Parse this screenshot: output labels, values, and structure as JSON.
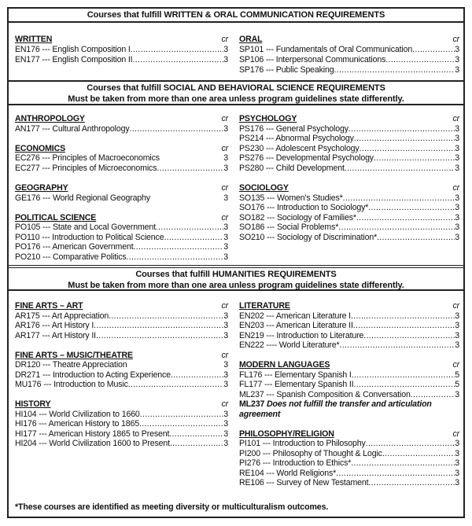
{
  "sections": [
    {
      "header": [
        "Courses that fulfill WRITTEN & ORAL COMMUNICATION REQUIREMENTS"
      ],
      "left": [
        {
          "title": "WRITTEN",
          "cr": "cr",
          "items": [
            {
              "text": "EN176 --- English Composition I",
              "credit": "3"
            },
            {
              "text": "EN177 --- English Composition II",
              "credit": "3"
            }
          ]
        }
      ],
      "right": [
        {
          "title": "ORAL",
          "cr": "cr",
          "items": [
            {
              "text": "SP101 --- Fundamentals of Oral Communication",
              "credit": "3"
            },
            {
              "text": "SP106 --- Interpersonal Communications",
              "credit": "3"
            },
            {
              "text": "SP176 --- Public Speaking",
              "credit": "3"
            }
          ]
        }
      ]
    },
    {
      "header": [
        "Courses that fulfill SOCIAL AND BEHAVIORAL SCIENCE REQUIREMENTS",
        "Must be taken from more than one area unless program guidelines state differently."
      ],
      "left": [
        {
          "title": "ANTHROPOLOGY",
          "cr": "cr",
          "items": [
            {
              "text": "AN177 --- Cultural Anthropology",
              "credit": "3"
            }
          ]
        },
        {
          "title": "ECONOMICS",
          "cr": "cr",
          "items": [
            {
              "text": "EC276 --- Principles of Macroeconomics",
              "credit": "3",
              "leader": false
            },
            {
              "text": "EC277 --- Principles of Microeconomics",
              "credit": "3"
            }
          ]
        },
        {
          "title": "GEOGRAPHY",
          "cr": "cr",
          "items": [
            {
              "text": "GE176 --- World Regional Geography",
              "credit": "3",
              "leader": false
            }
          ]
        },
        {
          "title": "POLITICAL SCIENCE",
          "cr": "cr",
          "items": [
            {
              "text": "PO105 --- State and Local Government",
              "credit": "3"
            },
            {
              "text": "PO110 --- Introduction to Political Science",
              "credit": "3"
            },
            {
              "text": "PO176 --- American Government",
              "credit": "3"
            },
            {
              "text": "PO210 --- Comparative Politics",
              "credit": "3"
            }
          ]
        }
      ],
      "right": [
        {
          "title": "PSYCHOLOGY",
          "cr": "cr",
          "items": [
            {
              "text": "PS176 --- General Psychology",
              "credit": "3"
            },
            {
              "text": "PS214 --- Abnormal Psychology",
              "credit": "3"
            },
            {
              "text": "PS230 --- Adolescent Psychology",
              "credit": "3"
            },
            {
              "text": "PS276 --- Developmental Psychology",
              "credit": "3"
            },
            {
              "text": "PS280 --- Child Development",
              "credit": "3"
            }
          ]
        },
        {
          "title": "SOCIOLOGY",
          "cr": "cr",
          "items": [
            {
              "text": "SO135 --- Women's Studies*",
              "credit": "3"
            },
            {
              "text": "SO176 --- Introduction to Sociology*",
              "credit": "3"
            },
            {
              "text": "SO182 --- Sociology of Families*",
              "credit": "3"
            },
            {
              "text": "SO186 --- Social Problems*",
              "credit": "3"
            },
            {
              "text": "SO210 --- Sociology of Discrimination*",
              "credit": "3"
            }
          ]
        }
      ]
    },
    {
      "header": [
        "Courses that fulfill HUMANITIES REQUIREMENTS",
        "Must be taken from more than one area unless program guidelines state differently."
      ],
      "left": [
        {
          "title": "FINE ARTS – ART",
          "cr": "cr",
          "items": [
            {
              "text": "AR175 --- Art Appreciation",
              "credit": "3"
            },
            {
              "text": "AR176 --- Art History I",
              "credit": "3"
            },
            {
              "text": "AR177 --- Art History II",
              "credit": "3"
            }
          ]
        },
        {
          "title": "FINE ARTS – MUSIC/THEATRE",
          "cr": "cr",
          "items": [
            {
              "text": "DR120 --- Theatre Appreciation",
              "credit": "3",
              "leader": false
            },
            {
              "text": "DR271 --- Introduction to Acting Experience",
              "credit": "3"
            },
            {
              "text": "MU176 --- Introduction to Music",
              "credit": "3"
            }
          ]
        },
        {
          "title": "HISTORY",
          "cr": "cr",
          "items": [
            {
              "text": "HI104 --- World Civilization to 1660",
              "credit": "3"
            },
            {
              "text": "HI176 --- American History to 1865",
              "credit": "3"
            },
            {
              "text": "HI177 --- American History 1865 to Present",
              "credit": "3"
            },
            {
              "text": "HI204 --- World Civilization 1600 to Present",
              "credit": "3"
            }
          ]
        }
      ],
      "right": [
        {
          "title": "LITERATURE",
          "cr": "cr",
          "items": [
            {
              "text": "EN202 --- American Literature I",
              "credit": "3"
            },
            {
              "text": "EN203 --- American Literature II",
              "credit": "3"
            },
            {
              "text": "EN219 --- Introduction to Literature",
              "credit": "3"
            },
            {
              "text": "EN222 ---- World Literature*",
              "credit": "3"
            }
          ]
        },
        {
          "title": "MODERN LANGUAGES",
          "cr": "cr",
          "items": [
            {
              "text": "FL176 --- Elementary Spanish I",
              "credit": "5"
            },
            {
              "text": "FL177 --- Elementary Spanish II",
              "credit": "5"
            },
            {
              "text": "ML237 --- Spanish Composition & Conversation",
              "credit": "3"
            }
          ],
          "note_code": "ML237",
          "note": "Does not fulfill the transfer and articulation agreement"
        },
        {
          "title": "PHILOSOPHY/RELIGION",
          "cr": "cr",
          "items": [
            {
              "text": "PI101 --- Introduction to Philosophy",
              "credit": "3"
            },
            {
              "text": "PI200 --- Philosophy of Thought & Logic",
              "credit": "3"
            },
            {
              "text": "PI276 --- Introduction to Ethics*",
              "credit": "3"
            },
            {
              "text": "RE104 --- World Religions*",
              "credit": "3"
            },
            {
              "text": "RE106 --- Survey of New Testament",
              "credit": "3"
            }
          ]
        }
      ]
    }
  ],
  "footnote": "*These courses are identified as meeting diversity or multiculturalism outcomes."
}
